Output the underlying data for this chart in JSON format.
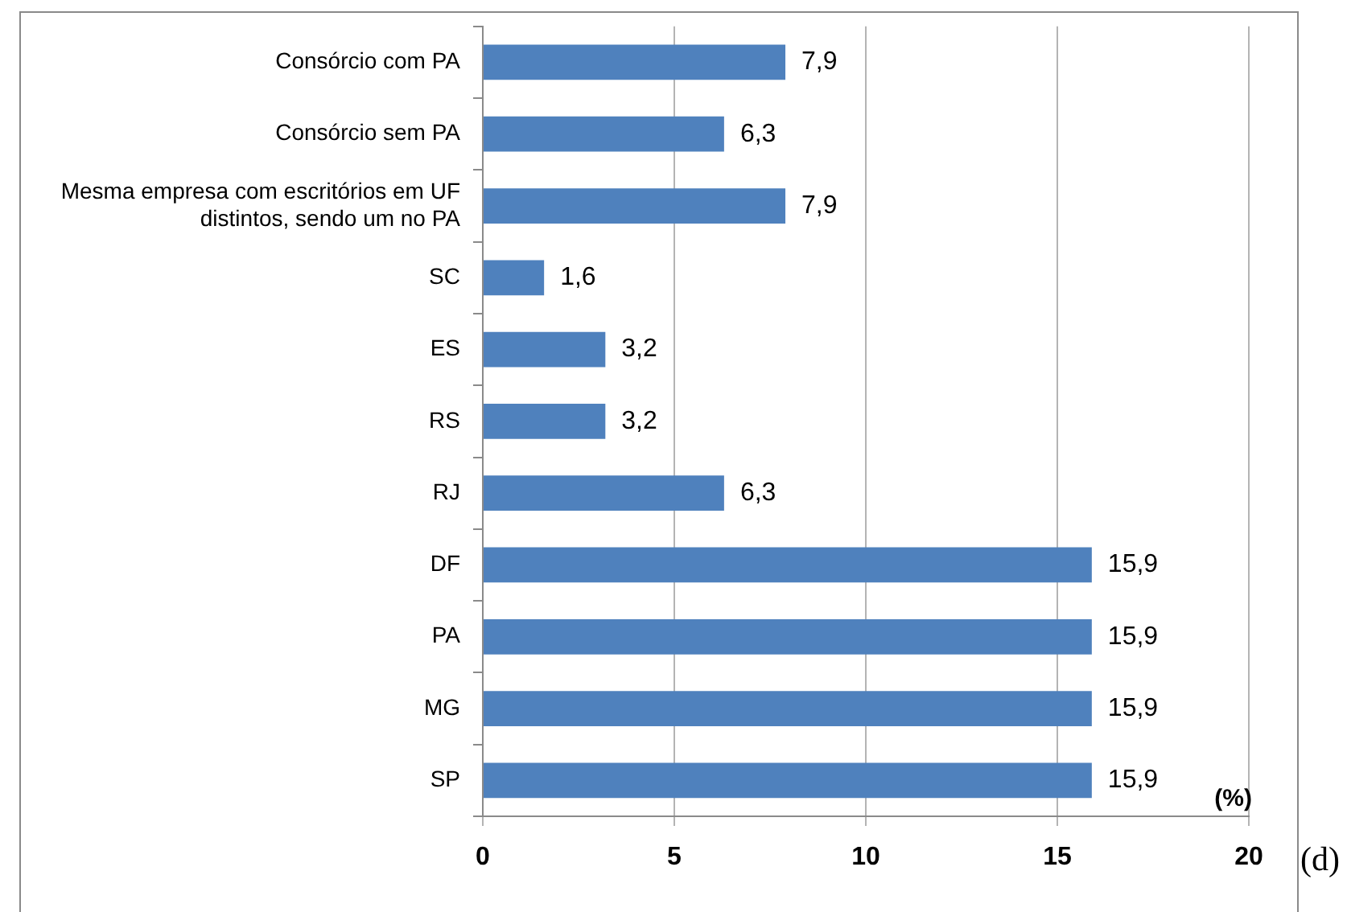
{
  "chart_data": {
    "type": "bar",
    "orientation": "horizontal",
    "xlabel": "(%)",
    "annotations": [
      "(d)"
    ],
    "categories": [
      "Consórcio com PA",
      "Consórcio sem PA",
      "Mesma empresa com escritórios em UF distintos, sendo um no PA",
      "SC",
      "ES",
      "RS",
      "RJ",
      "DF",
      "PA",
      "MG",
      "SP"
    ],
    "values": [
      7.9,
      6.3,
      7.9,
      1.6,
      3.2,
      3.2,
      6.3,
      15.9,
      15.9,
      15.9,
      15.9
    ],
    "value_labels": [
      "7,9",
      "6,3",
      "7,9",
      "1,6",
      "3,2",
      "3,2",
      "6,3",
      "15,9",
      "15,9",
      "15,9",
      "15,9"
    ],
    "color": "#4f81bd",
    "xlim": [
      0,
      20
    ],
    "xticks": [
      0,
      5,
      10,
      15,
      20
    ],
    "grid": "x"
  }
}
